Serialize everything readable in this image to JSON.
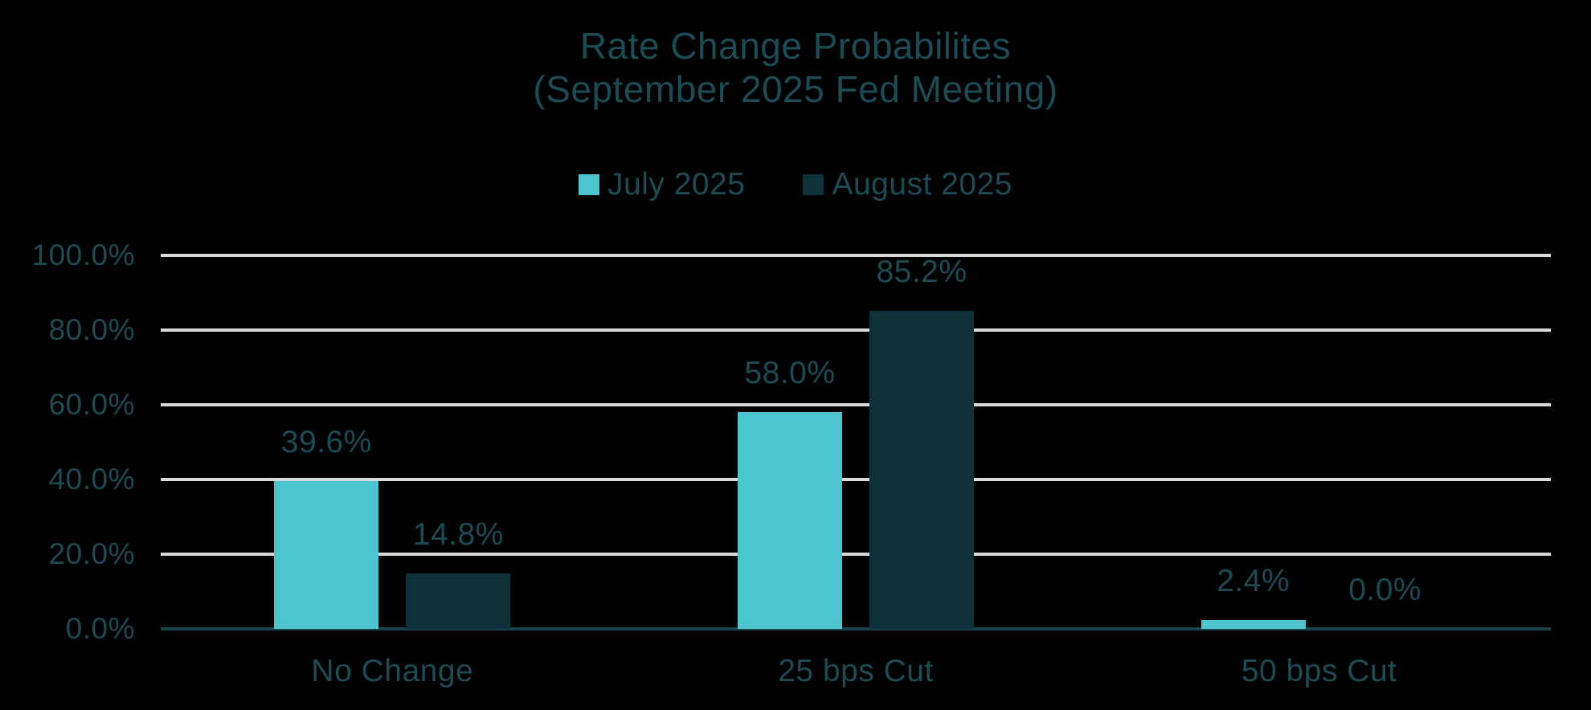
{
  "title": {
    "line1": "Rate Change Probabilites",
    "line2": "(September 2025 Fed Meeting)"
  },
  "colors": {
    "background": "#000000",
    "text": "#1C4B54",
    "gridline": "#D7DADC",
    "axis_line": "#1A424C",
    "series_july": "#4EC4CE",
    "series_august": "#0F323A"
  },
  "chart_data": {
    "type": "bar",
    "title": "Rate Change Probabilites (September 2025 Fed Meeting)",
    "categories": [
      "No Change",
      "25 bps Cut",
      "50 bps Cut"
    ],
    "series": [
      {
        "name": "July 2025",
        "color": "#4EC4CE",
        "values": [
          39.6,
          58.0,
          2.4
        ],
        "labels": [
          "39.6%",
          "58.0%",
          "2.4%"
        ]
      },
      {
        "name": "August 2025",
        "color": "#0F323A",
        "values": [
          14.8,
          85.2,
          0.0
        ],
        "labels": [
          "14.8%",
          "85.2%",
          "0.0%"
        ]
      }
    ],
    "y_ticks": [
      {
        "label": "100.0%",
        "value": 100
      },
      {
        "label": "80.0%",
        "value": 80
      },
      {
        "label": "60.0%",
        "value": 60
      },
      {
        "label": "40.0%",
        "value": 40
      },
      {
        "label": "20.0%",
        "value": 20
      },
      {
        "label": "0.0%",
        "value": 0
      }
    ],
    "ylim": [
      0,
      100
    ],
    "grid": true,
    "legend_position": "top",
    "xlabel": "",
    "ylabel": ""
  }
}
